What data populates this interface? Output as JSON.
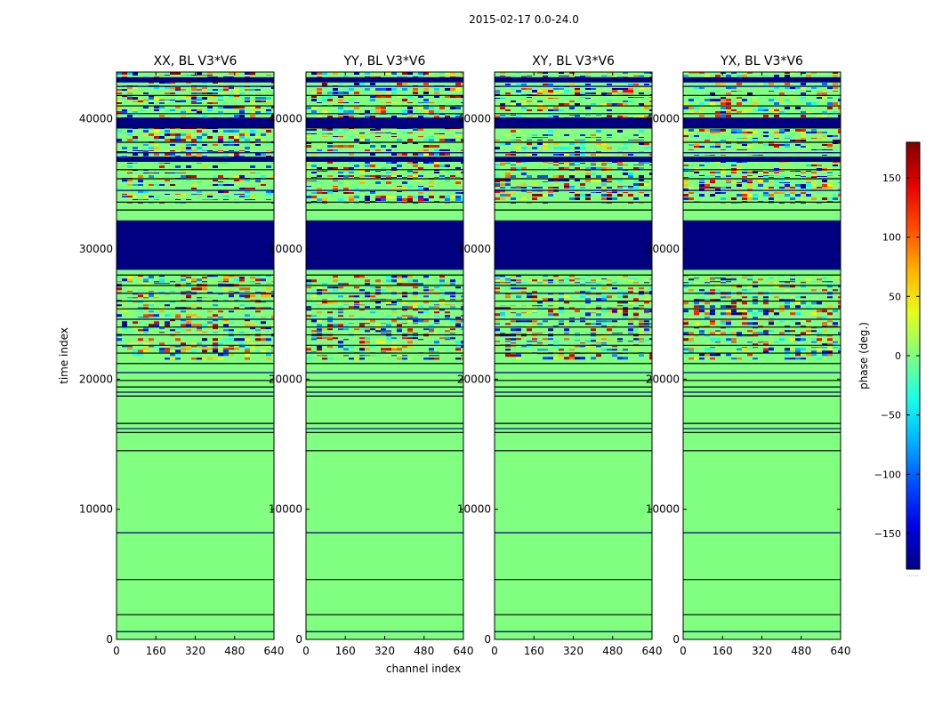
{
  "figure": {
    "suptitle": "2015-02-17 0.0-24.0",
    "xlabel": "channel index",
    "ylabel": "time index",
    "colorbar_label": "phase (deg.)",
    "colorbar_ticks": [
      "150",
      "100",
      "50",
      "0",
      "−50",
      "−100",
      "−150"
    ],
    "colorbar_tick_values": [
      150,
      100,
      50,
      0,
      -50,
      -100,
      -150
    ],
    "colorbar_range": [
      -180,
      180
    ],
    "colorbar_note": "......",
    "background_color": "#80ff80",
    "flag_color": "#000080",
    "line_color": "#000000"
  },
  "chart_data": [
    {
      "type": "heatmap",
      "title": "XX, BL V3*V6",
      "xlim": [
        0,
        640
      ],
      "ylim": [
        0,
        43600
      ],
      "x_ticks": [
        "0",
        "160",
        "320",
        "480",
        "640"
      ],
      "y_ticks": [
        "0",
        "10000",
        "20000",
        "30000",
        "40000"
      ],
      "x_tick_values": [
        0,
        160,
        320,
        480,
        640
      ],
      "y_tick_values": [
        0,
        10000,
        20000,
        30000,
        40000
      ],
      "colormap": "jet",
      "value_range_deg": [
        -180,
        180
      ],
      "zero_phase_region": [
        0,
        21500
      ],
      "noisy_regions": [
        [
          21500,
          28000
        ],
        [
          33500,
          43600
        ]
      ],
      "flagged_blocks": [
        [
          28400,
          32200
        ],
        [
          39300,
          40100
        ],
        [
          36700,
          37100
        ],
        [
          42800,
          43200
        ]
      ],
      "horizontal_lines": [
        600,
        1900,
        4600,
        8200,
        14500,
        15900,
        16200,
        16600,
        18700,
        19000,
        19400,
        19900,
        20500,
        21200,
        22000,
        22600,
        23400,
        24000,
        24600,
        25400,
        26000,
        26600,
        27200,
        28000,
        30200,
        33000,
        33600,
        34500,
        35400,
        36100,
        37400,
        38200,
        39300,
        40400,
        41000,
        41800,
        42500
      ]
    },
    {
      "type": "heatmap",
      "title": "YY, BL V3*V6",
      "xlim": [
        0,
        640
      ],
      "ylim": [
        0,
        43600
      ],
      "x_ticks": [
        "0",
        "160",
        "320",
        "480",
        "640"
      ],
      "y_ticks": [
        "0",
        "10000",
        "20000",
        "30000",
        "40000"
      ],
      "x_tick_values": [
        0,
        160,
        320,
        480,
        640
      ],
      "y_tick_values": [
        0,
        10000,
        20000,
        30000,
        40000
      ],
      "colormap": "jet",
      "value_range_deg": [
        -180,
        180
      ],
      "zero_phase_region": [
        0,
        21500
      ],
      "noisy_regions": [
        [
          21500,
          28000
        ],
        [
          33500,
          43600
        ]
      ],
      "flagged_blocks": [
        [
          28400,
          32200
        ],
        [
          39300,
          40100
        ],
        [
          36700,
          37100
        ],
        [
          42800,
          43200
        ]
      ],
      "horizontal_lines": [
        600,
        1900,
        4600,
        8200,
        14500,
        15900,
        16200,
        16600,
        18700,
        19000,
        19400,
        19900,
        20500,
        21200,
        22000,
        22600,
        23400,
        24000,
        24600,
        25400,
        26000,
        26600,
        27200,
        28000,
        30200,
        33000,
        33600,
        34500,
        35400,
        36100,
        37400,
        38200,
        39300,
        40400,
        41000,
        41800,
        42500
      ]
    },
    {
      "type": "heatmap",
      "title": "XY, BL V3*V6",
      "xlim": [
        0,
        640
      ],
      "ylim": [
        0,
        43600
      ],
      "x_ticks": [
        "0",
        "160",
        "320",
        "480",
        "640"
      ],
      "y_ticks": [
        "0",
        "10000",
        "20000",
        "30000",
        "40000"
      ],
      "x_tick_values": [
        0,
        160,
        320,
        480,
        640
      ],
      "y_tick_values": [
        0,
        10000,
        20000,
        30000,
        40000
      ],
      "colormap": "jet",
      "value_range_deg": [
        -180,
        180
      ],
      "zero_phase_region": [
        0,
        21500
      ],
      "noisy_regions": [
        [
          21500,
          28000
        ],
        [
          33500,
          43600
        ]
      ],
      "flagged_blocks": [
        [
          28400,
          32200
        ],
        [
          39300,
          40100
        ],
        [
          36700,
          37100
        ],
        [
          42800,
          43200
        ]
      ],
      "horizontal_lines": [
        600,
        1900,
        4600,
        8200,
        14500,
        15900,
        16200,
        16600,
        18700,
        19000,
        19400,
        19900,
        20500,
        21200,
        22000,
        22600,
        23400,
        24000,
        24600,
        25400,
        26000,
        26600,
        27200,
        28000,
        30200,
        33000,
        33600,
        34500,
        35400,
        36100,
        37400,
        38200,
        39300,
        40400,
        41000,
        41800,
        42500
      ]
    },
    {
      "type": "heatmap",
      "title": "YX, BL V3*V6",
      "xlim": [
        0,
        640
      ],
      "ylim": [
        0,
        43600
      ],
      "x_ticks": [
        "0",
        "160",
        "320",
        "480",
        "640"
      ],
      "y_ticks": [
        "0",
        "10000",
        "20000",
        "30000",
        "40000"
      ],
      "x_tick_values": [
        0,
        160,
        320,
        480,
        640
      ],
      "y_tick_values": [
        0,
        10000,
        20000,
        30000,
        40000
      ],
      "colormap": "jet",
      "value_range_deg": [
        -180,
        180
      ],
      "zero_phase_region": [
        0,
        21500
      ],
      "noisy_regions": [
        [
          21500,
          28000
        ],
        [
          33500,
          43600
        ]
      ],
      "flagged_blocks": [
        [
          28400,
          32200
        ],
        [
          39300,
          40100
        ],
        [
          36700,
          37100
        ],
        [
          42800,
          43200
        ]
      ],
      "horizontal_lines": [
        600,
        1900,
        4600,
        8200,
        14500,
        15900,
        16200,
        16600,
        18700,
        19000,
        19400,
        19900,
        20500,
        21200,
        22000,
        22600,
        23400,
        24000,
        24600,
        25400,
        26000,
        26600,
        27200,
        28000,
        30200,
        33000,
        33600,
        34500,
        35400,
        36100,
        37400,
        38200,
        39300,
        40400,
        41000,
        41800,
        42500
      ]
    }
  ]
}
